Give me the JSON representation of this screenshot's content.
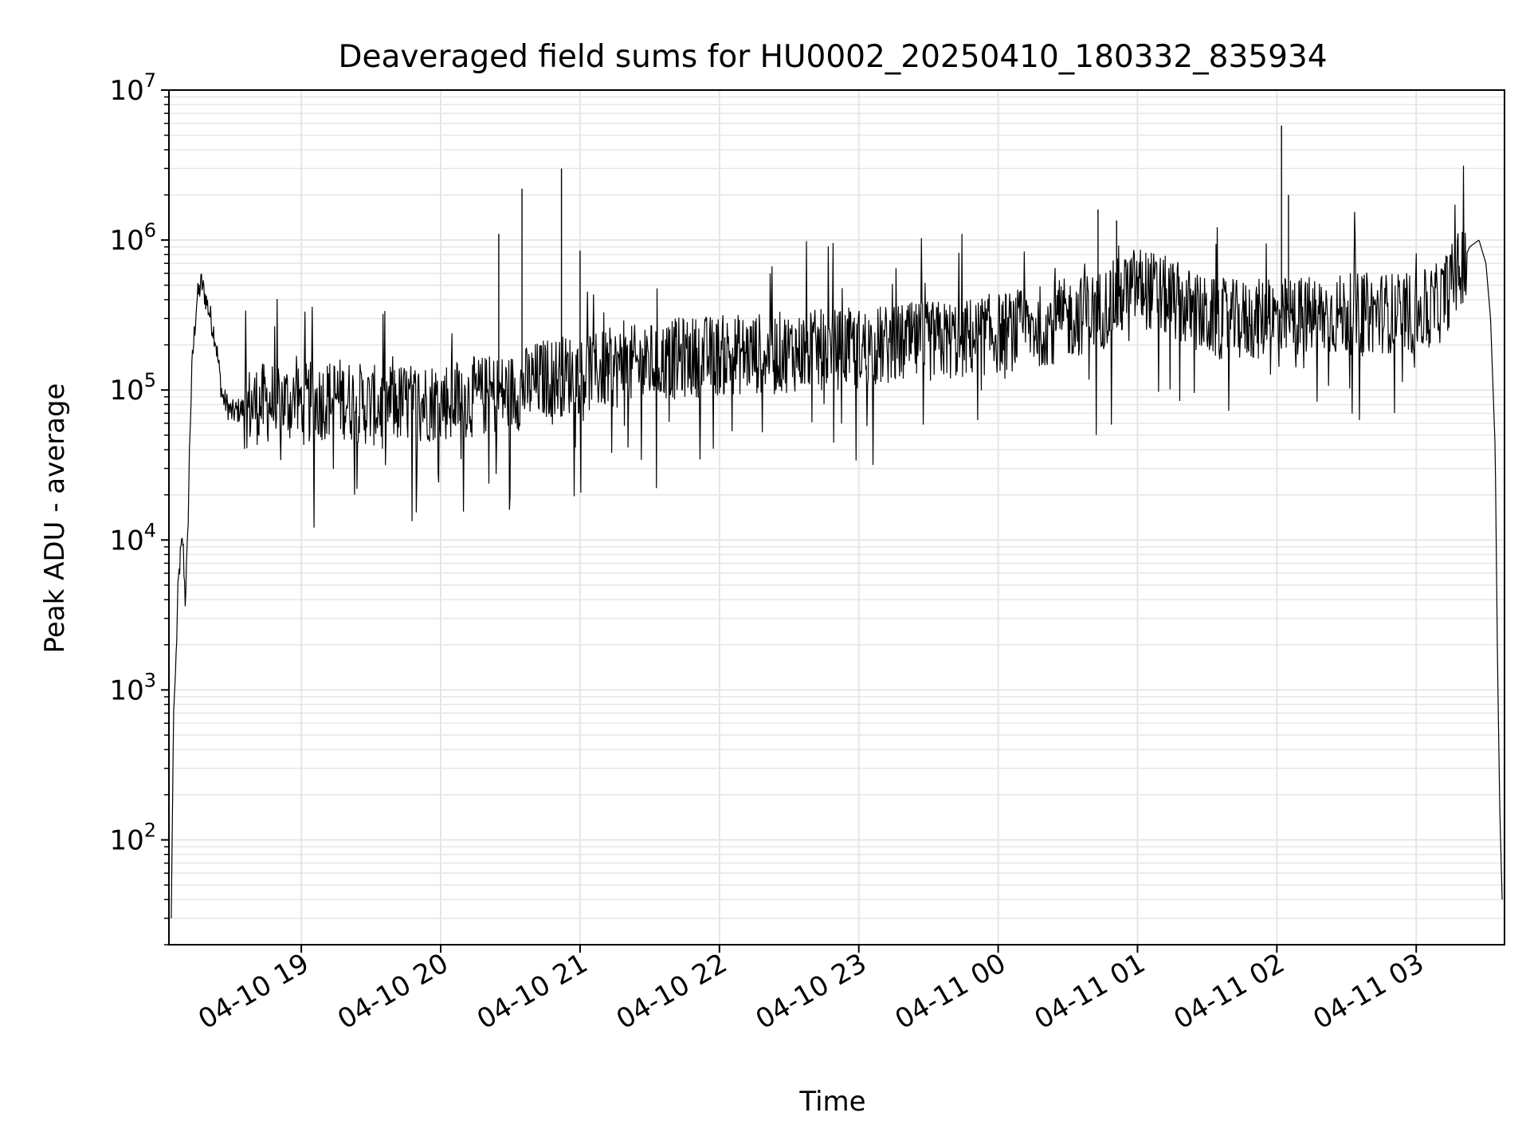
{
  "chart_data": {
    "type": "line",
    "title": "Deaveraged field sums for HU0002_20250410_180332_835934",
    "xlabel": "Time",
    "ylabel": "Peak ADU - average",
    "yscale": "log",
    "ylim": [
      20,
      10000000
    ],
    "xlim": [
      "2025-04-10 18:03",
      "2025-04-11 03:38"
    ],
    "grid": true,
    "line_color": "#000000",
    "x_ticks": [
      {
        "value": "2025-04-10 19:00",
        "label": "04-10 19"
      },
      {
        "value": "2025-04-10 20:00",
        "label": "04-10 20"
      },
      {
        "value": "2025-04-10 21:00",
        "label": "04-10 21"
      },
      {
        "value": "2025-04-10 22:00",
        "label": "04-10 22"
      },
      {
        "value": "2025-04-10 23:00",
        "label": "04-10 23"
      },
      {
        "value": "2025-04-11 00:00",
        "label": "04-11 00"
      },
      {
        "value": "2025-04-11 01:00",
        "label": "04-11 01"
      },
      {
        "value": "2025-04-11 02:00",
        "label": "04-11 02"
      },
      {
        "value": "2025-04-11 03:00",
        "label": "04-11 03"
      }
    ],
    "y_ticks": [
      {
        "value": 100,
        "base": "10",
        "exp": "2"
      },
      {
        "value": 1000,
        "base": "10",
        "exp": "3"
      },
      {
        "value": 10000,
        "base": "10",
        "exp": "4"
      },
      {
        "value": 100000,
        "base": "10",
        "exp": "5"
      },
      {
        "value": 1000000,
        "base": "10",
        "exp": "6"
      },
      {
        "value": 10000000,
        "base": "10",
        "exp": "7"
      }
    ],
    "series": [
      {
        "x": [
          "2025-04-10 18:04",
          "2025-04-10 18:05",
          "2025-04-10 18:06",
          "2025-04-10 18:07",
          "2025-04-10 18:08",
          "2025-04-10 18:09",
          "2025-04-10 18:10",
          "2025-04-10 18:11",
          "2025-04-10 18:12",
          "2025-04-10 18:13",
          "2025-04-10 18:15",
          "2025-04-10 18:17",
          "2025-04-10 18:20",
          "2025-04-10 18:23",
          "2025-04-10 18:26",
          "2025-04-10 18:30",
          "2025-04-10 18:35",
          "2025-04-10 18:40",
          "2025-04-10 18:45",
          "2025-04-10 18:52",
          "2025-04-10 19:00",
          "2025-04-10 19:15",
          "2025-04-10 19:30",
          "2025-04-10 19:45",
          "2025-04-10 20:00",
          "2025-04-10 20:15",
          "2025-04-10 20:30",
          "2025-04-10 20:45",
          "2025-04-10 21:00",
          "2025-04-10 21:15",
          "2025-04-10 21:30",
          "2025-04-10 21:45",
          "2025-04-10 22:00",
          "2025-04-10 22:15",
          "2025-04-10 22:30",
          "2025-04-10 22:45",
          "2025-04-10 23:00",
          "2025-04-10 23:15",
          "2025-04-10 23:30",
          "2025-04-10 23:45",
          "2025-04-11 00:00",
          "2025-04-11 00:15",
          "2025-04-11 00:30",
          "2025-04-11 00:45",
          "2025-04-11 01:00",
          "2025-04-11 01:15",
          "2025-04-11 01:30",
          "2025-04-11 01:45",
          "2025-04-11 02:00",
          "2025-04-11 02:15",
          "2025-04-11 02:30",
          "2025-04-11 02:45",
          "2025-04-11 03:00",
          "2025-04-11 03:10",
          "2025-04-11 03:18",
          "2025-04-11 03:23",
          "2025-04-11 03:27",
          "2025-04-11 03:30",
          "2025-04-11 03:32",
          "2025-04-11 03:34",
          "2025-04-11 03:35",
          "2025-04-11 03:36",
          "2025-04-11 03:37"
        ],
        "y": [
          30,
          700,
          1500,
          5000,
          8000,
          10000,
          4000,
          9000,
          50000,
          150000,
          400000,
          520000,
          350000,
          220000,
          90000,
          70000,
          75000,
          80000,
          82000,
          85000,
          80000,
          90000,
          78000,
          82000,
          85000,
          90000,
          95000,
          120000,
          130000,
          140000,
          150000,
          165000,
          170000,
          175000,
          180000,
          185000,
          190000,
          200000,
          210000,
          220000,
          240000,
          260000,
          300000,
          350000,
          500000,
          400000,
          300000,
          290000,
          300000,
          310000,
          320000,
          330000,
          320000,
          380000,
          600000,
          900000,
          1000000,
          700000,
          300000,
          40000,
          1500,
          150,
          40
        ]
      }
    ],
    "spikes": [
      {
        "x": "2025-04-10 20:25",
        "y": 1100000
      },
      {
        "x": "2025-04-10 20:35",
        "y": 2200000
      },
      {
        "x": "2025-04-10 20:52",
        "y": 3000000
      },
      {
        "x": "2025-04-10 21:00",
        "y": 850000
      },
      {
        "x": "2025-04-11 00:43",
        "y": 1600000
      },
      {
        "x": "2025-04-11 00:51",
        "y": 1350000
      },
      {
        "x": "2025-04-11 02:02",
        "y": 5800000
      },
      {
        "x": "2025-04-11 02:05",
        "y": 2000000
      }
    ]
  }
}
